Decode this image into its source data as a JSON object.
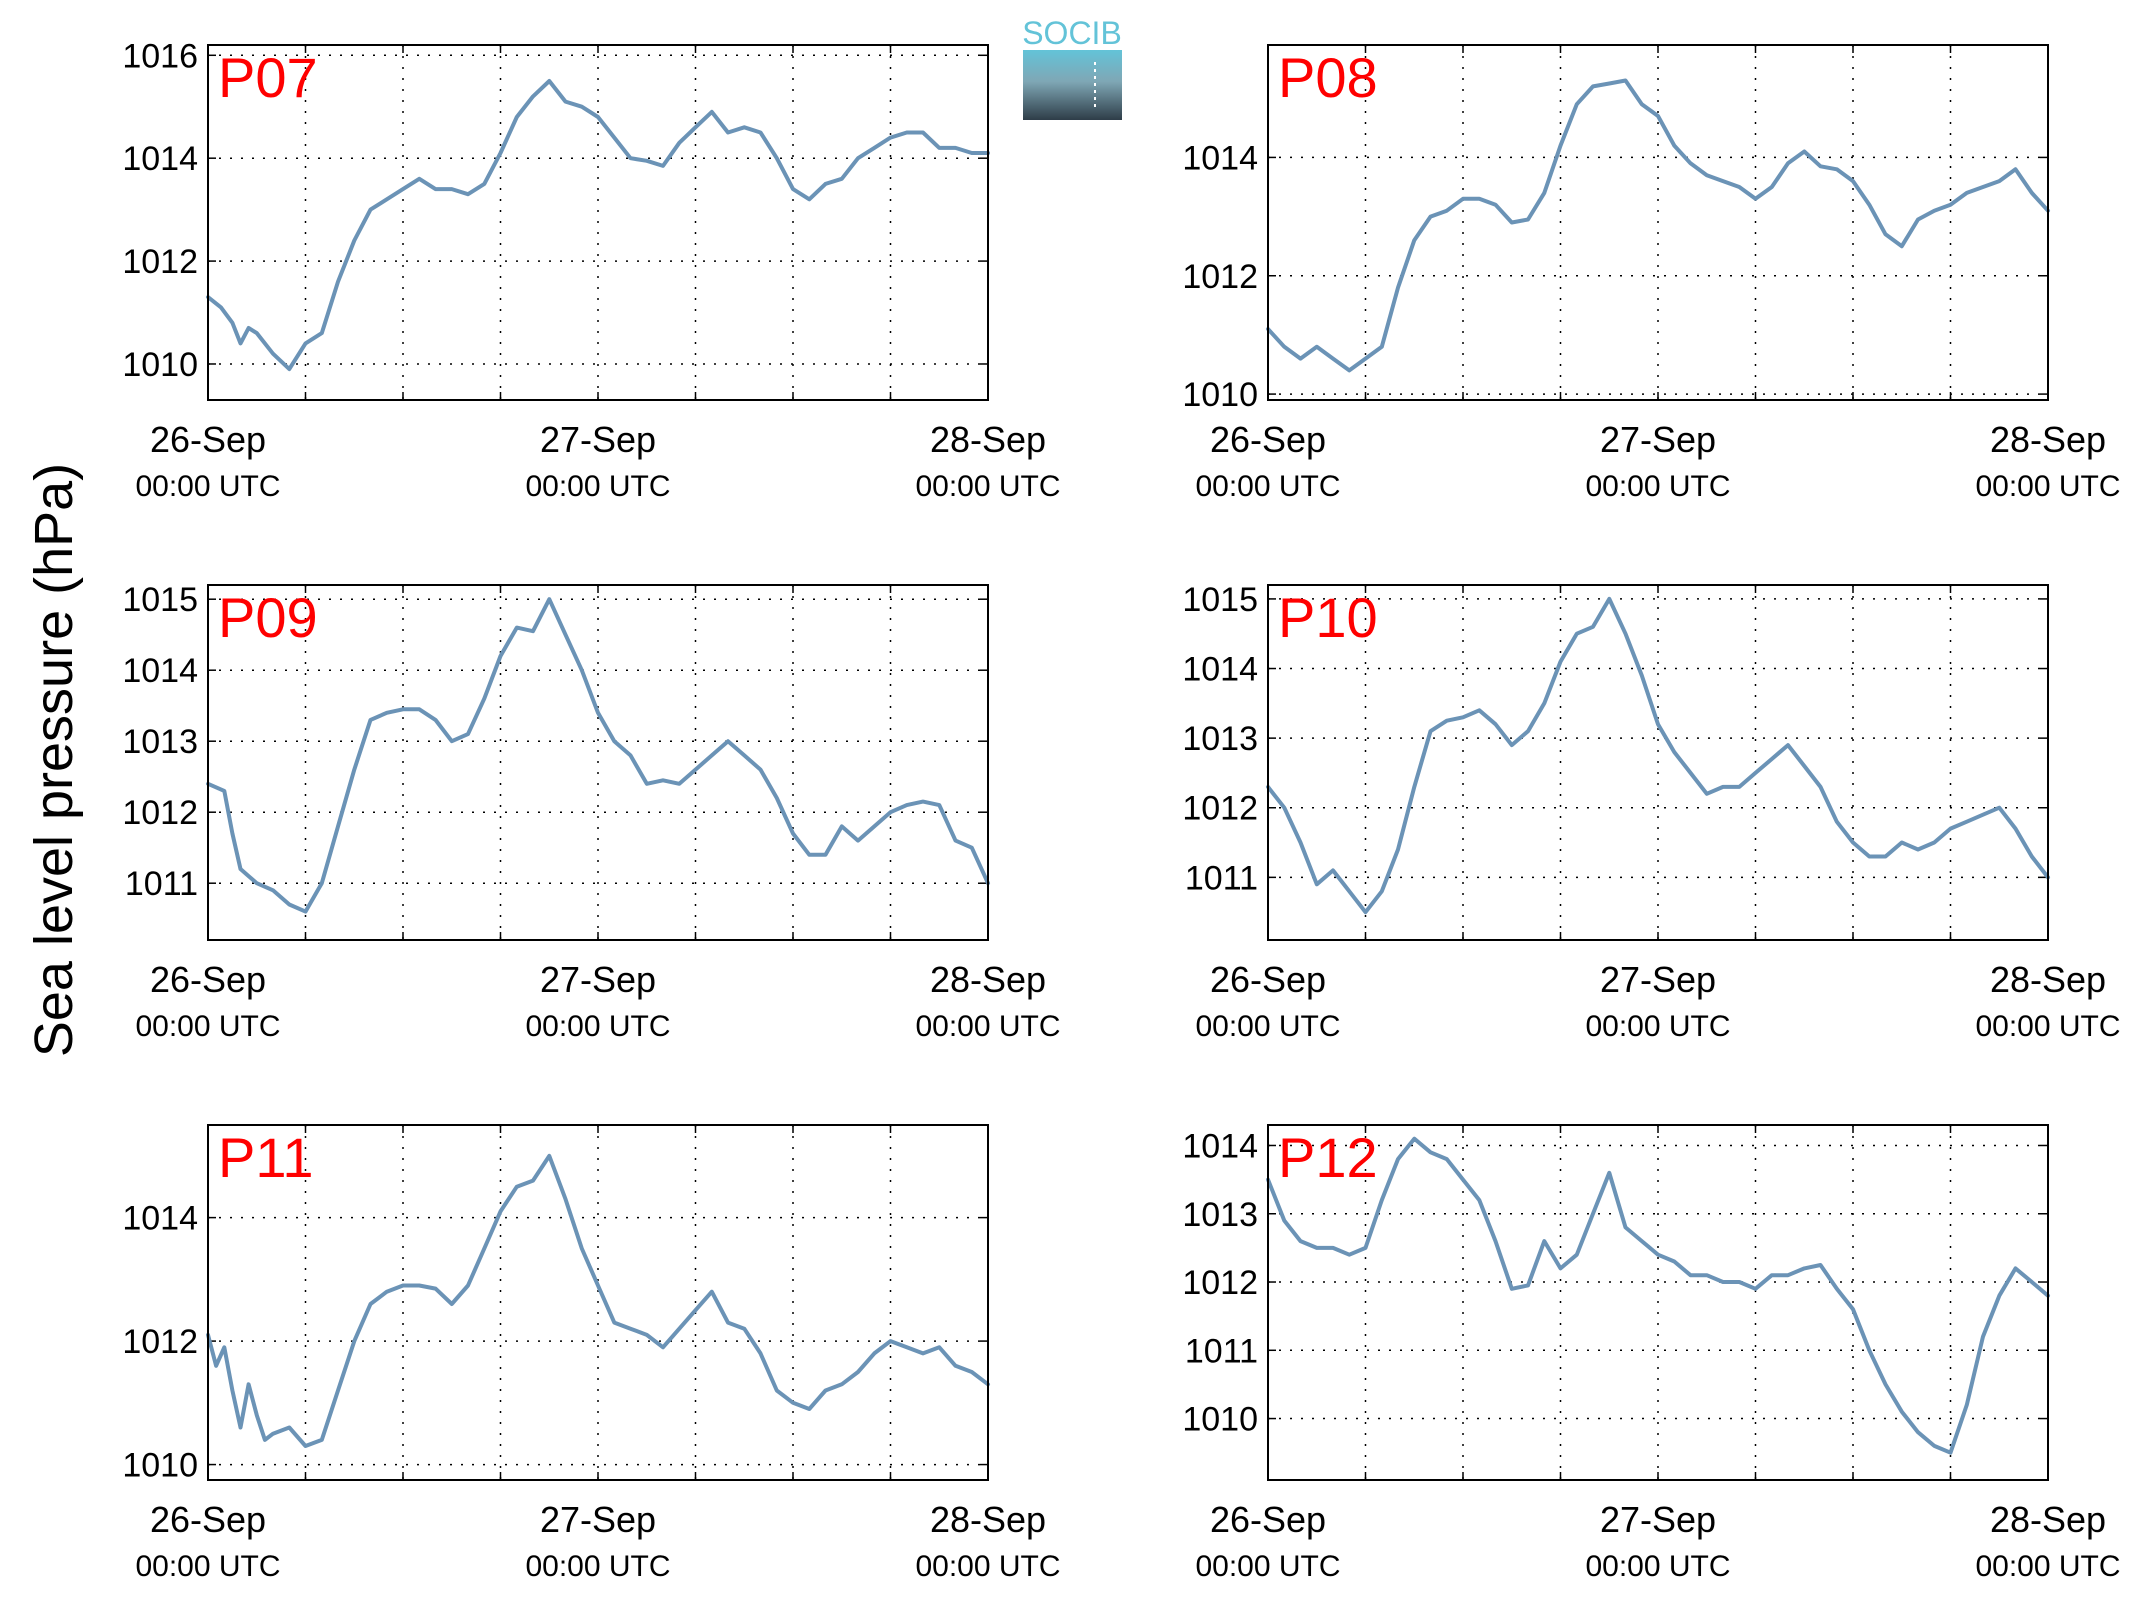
{
  "figure": {
    "ylabel": "Sea level pressure (hPa)",
    "logo_text": "SOCIB"
  },
  "colors": {
    "series": "#6b93b6",
    "station_label": "#ff0000",
    "logo_top": "#63c3d8",
    "logo_bottom": "#2e3d48"
  },
  "chart_data": [
    {
      "type": "line",
      "station": "P07",
      "x_ticks": [
        {
          "date": "26-Sep",
          "time": "00:00 UTC"
        },
        {
          "date": "27-Sep",
          "time": "00:00 UTC"
        },
        {
          "date": "28-Sep",
          "time": "00:00 UTC"
        }
      ],
      "x_range_hours": [
        0,
        48
      ],
      "ylim": [
        1009.3,
        1016.2
      ],
      "y_ticks": [
        1010,
        1012,
        1014,
        1016
      ],
      "grid": true,
      "series": [
        {
          "x_hours": [
            0,
            0.8,
            1.5,
            2,
            2.5,
            3,
            4,
            5,
            6,
            7,
            8,
            9,
            10,
            11,
            12,
            13,
            14,
            15,
            16,
            17,
            18,
            19,
            20,
            21,
            22,
            23,
            24,
            25,
            26,
            27,
            28,
            29,
            30,
            31,
            32,
            33,
            34,
            35,
            36,
            37,
            38,
            39,
            40,
            41,
            42,
            43,
            44,
            45,
            46,
            47,
            48
          ],
          "values": [
            1011.3,
            1011.1,
            1010.8,
            1010.4,
            1010.7,
            1010.6,
            1010.2,
            1009.9,
            1010.4,
            1010.6,
            1011.6,
            1012.4,
            1013.0,
            1013.2,
            1013.4,
            1013.6,
            1013.4,
            1013.4,
            1013.3,
            1013.5,
            1014.1,
            1014.8,
            1015.2,
            1015.5,
            1015.1,
            1015.0,
            1014.8,
            1014.4,
            1014.0,
            1013.95,
            1013.85,
            1014.3,
            1014.6,
            1014.9,
            1014.5,
            1014.6,
            1014.5,
            1014.0,
            1013.4,
            1013.2,
            1013.5,
            1013.6,
            1014.0,
            1014.2,
            1014.4,
            1014.5,
            1014.5,
            1014.2,
            1014.2,
            1014.1,
            1014.1
          ]
        }
      ]
    },
    {
      "type": "line",
      "station": "P08",
      "x_ticks": [
        {
          "date": "26-Sep",
          "time": "00:00 UTC"
        },
        {
          "date": "27-Sep",
          "time": "00:00 UTC"
        },
        {
          "date": "28-Sep",
          "time": "00:00 UTC"
        }
      ],
      "x_range_hours": [
        0,
        48
      ],
      "ylim": [
        1009.9,
        1015.9
      ],
      "y_ticks": [
        1010,
        1012,
        1014
      ],
      "grid": true,
      "series": [
        {
          "x_hours": [
            0,
            1,
            2,
            3,
            4,
            5,
            6,
            7,
            8,
            9,
            10,
            11,
            12,
            13,
            14,
            15,
            16,
            17,
            18,
            19,
            20,
            21,
            22,
            23,
            24,
            25,
            26,
            27,
            28,
            29,
            30,
            31,
            32,
            33,
            34,
            35,
            36,
            37,
            38,
            39,
            40,
            41,
            42,
            43,
            44,
            45,
            46,
            47,
            48
          ],
          "values": [
            1011.1,
            1010.8,
            1010.6,
            1010.8,
            1010.6,
            1010.4,
            1010.6,
            1010.8,
            1011.8,
            1012.6,
            1013.0,
            1013.1,
            1013.3,
            1013.3,
            1013.2,
            1012.9,
            1012.95,
            1013.4,
            1014.2,
            1014.9,
            1015.2,
            1015.25,
            1015.3,
            1014.9,
            1014.7,
            1014.2,
            1013.9,
            1013.7,
            1013.6,
            1013.5,
            1013.3,
            1013.5,
            1013.9,
            1014.1,
            1013.85,
            1013.8,
            1013.6,
            1013.2,
            1012.7,
            1012.5,
            1012.95,
            1013.1,
            1013.2,
            1013.4,
            1013.5,
            1013.6,
            1013.8,
            1013.4,
            1013.1
          ]
        }
      ]
    },
    {
      "type": "line",
      "station": "P09",
      "x_ticks": [
        {
          "date": "26-Sep",
          "time": "00:00 UTC"
        },
        {
          "date": "27-Sep",
          "time": "00:00 UTC"
        },
        {
          "date": "28-Sep",
          "time": "00:00 UTC"
        }
      ],
      "x_range_hours": [
        0,
        48
      ],
      "ylim": [
        1010.2,
        1015.2
      ],
      "y_ticks": [
        1011,
        1012,
        1013,
        1014,
        1015
      ],
      "grid": true,
      "series": [
        {
          "x_hours": [
            0,
            1,
            1.5,
            2,
            2.5,
            3,
            4,
            5,
            6,
            7,
            8,
            9,
            10,
            11,
            12,
            13,
            14,
            15,
            16,
            17,
            18,
            19,
            20,
            21,
            22,
            23,
            24,
            25,
            26,
            27,
            28,
            29,
            30,
            31,
            32,
            33,
            34,
            35,
            36,
            37,
            38,
            39,
            40,
            41,
            42,
            43,
            44,
            45,
            46,
            47,
            48
          ],
          "values": [
            1012.4,
            1012.3,
            1011.7,
            1011.2,
            1011.1,
            1011.0,
            1010.9,
            1010.7,
            1010.6,
            1011.0,
            1011.8,
            1012.6,
            1013.3,
            1013.4,
            1013.45,
            1013.45,
            1013.3,
            1013.0,
            1013.1,
            1013.6,
            1014.2,
            1014.6,
            1014.55,
            1015.0,
            1014.5,
            1014.0,
            1013.4,
            1013.0,
            1012.8,
            1012.4,
            1012.45,
            1012.4,
            1012.6,
            1012.8,
            1013.0,
            1012.8,
            1012.6,
            1012.2,
            1011.7,
            1011.4,
            1011.4,
            1011.8,
            1011.6,
            1011.8,
            1012.0,
            1012.1,
            1012.15,
            1012.1,
            1011.6,
            1011.5,
            1011.0
          ]
        }
      ]
    },
    {
      "type": "line",
      "station": "P10",
      "x_ticks": [
        {
          "date": "26-Sep",
          "time": "00:00 UTC"
        },
        {
          "date": "27-Sep",
          "time": "00:00 UTC"
        },
        {
          "date": "28-Sep",
          "time": "00:00 UTC"
        }
      ],
      "x_range_hours": [
        0,
        48
      ],
      "ylim": [
        1010.1,
        1015.2
      ],
      "y_ticks": [
        1011,
        1012,
        1013,
        1014,
        1015
      ],
      "grid": true,
      "series": [
        {
          "x_hours": [
            0,
            1,
            2,
            3,
            4,
            5,
            6,
            7,
            8,
            9,
            10,
            11,
            12,
            13,
            14,
            15,
            16,
            17,
            18,
            19,
            20,
            21,
            22,
            23,
            24,
            25,
            26,
            27,
            28,
            29,
            30,
            31,
            32,
            33,
            34,
            35,
            36,
            37,
            38,
            39,
            40,
            41,
            42,
            43,
            44,
            45,
            46,
            47,
            48
          ],
          "values": [
            1012.3,
            1012.0,
            1011.5,
            1010.9,
            1011.1,
            1010.8,
            1010.5,
            1010.8,
            1011.4,
            1012.3,
            1013.1,
            1013.25,
            1013.3,
            1013.4,
            1013.2,
            1012.9,
            1013.1,
            1013.5,
            1014.1,
            1014.5,
            1014.6,
            1015.0,
            1014.5,
            1013.9,
            1013.2,
            1012.8,
            1012.5,
            1012.2,
            1012.3,
            1012.3,
            1012.5,
            1012.7,
            1012.9,
            1012.6,
            1012.3,
            1011.8,
            1011.5,
            1011.3,
            1011.3,
            1011.5,
            1011.4,
            1011.5,
            1011.7,
            1011.8,
            1011.9,
            1012.0,
            1011.7,
            1011.3,
            1011.0
          ]
        }
      ]
    },
    {
      "type": "line",
      "station": "P11",
      "x_ticks": [
        {
          "date": "26-Sep",
          "time": "00:00 UTC"
        },
        {
          "date": "27-Sep",
          "time": "00:00 UTC"
        },
        {
          "date": "28-Sep",
          "time": "00:00 UTC"
        }
      ],
      "x_range_hours": [
        0,
        48
      ],
      "ylim": [
        1009.75,
        1015.5
      ],
      "y_ticks": [
        1010,
        1012,
        1014
      ],
      "grid": true,
      "series": [
        {
          "x_hours": [
            0,
            0.5,
            1,
            1.5,
            2,
            2.5,
            3,
            3.5,
            4,
            5,
            6,
            7,
            8,
            9,
            10,
            11,
            12,
            13,
            14,
            15,
            16,
            17,
            18,
            19,
            20,
            21,
            22,
            23,
            24,
            25,
            26,
            27,
            28,
            29,
            30,
            31,
            32,
            33,
            34,
            35,
            36,
            37,
            38,
            39,
            40,
            41,
            42,
            43,
            44,
            45,
            46,
            47,
            48
          ],
          "values": [
            1012.1,
            1011.6,
            1011.9,
            1011.2,
            1010.6,
            1011.3,
            1010.8,
            1010.4,
            1010.5,
            1010.6,
            1010.3,
            1010.4,
            1011.2,
            1012.0,
            1012.6,
            1012.8,
            1012.9,
            1012.9,
            1012.85,
            1012.6,
            1012.9,
            1013.5,
            1014.1,
            1014.5,
            1014.6,
            1015.0,
            1014.3,
            1013.5,
            1012.9,
            1012.3,
            1012.2,
            1012.1,
            1011.9,
            1012.2,
            1012.5,
            1012.8,
            1012.3,
            1012.2,
            1011.8,
            1011.2,
            1011.0,
            1010.9,
            1011.2,
            1011.3,
            1011.5,
            1011.8,
            1012.0,
            1011.9,
            1011.8,
            1011.9,
            1011.6,
            1011.5,
            1011.3
          ]
        }
      ]
    },
    {
      "type": "line",
      "station": "P12",
      "x_ticks": [
        {
          "date": "26-Sep",
          "time": "00:00 UTC"
        },
        {
          "date": "27-Sep",
          "time": "00:00 UTC"
        },
        {
          "date": "28-Sep",
          "time": "00:00 UTC"
        }
      ],
      "x_range_hours": [
        0,
        48
      ],
      "ylim": [
        1009.1,
        1014.3
      ],
      "y_ticks": [
        1010,
        1011,
        1012,
        1013,
        1014
      ],
      "grid": true,
      "series": [
        {
          "x_hours": [
            0,
            1,
            2,
            3,
            4,
            5,
            6,
            7,
            8,
            9,
            10,
            11,
            12,
            13,
            14,
            15,
            16,
            17,
            18,
            19,
            20,
            21,
            22,
            23,
            24,
            25,
            26,
            27,
            28,
            29,
            30,
            31,
            32,
            33,
            34,
            35,
            36,
            37,
            38,
            39,
            40,
            41,
            42,
            43,
            44,
            45,
            46,
            47,
            48
          ],
          "values": [
            1013.5,
            1012.9,
            1012.6,
            1012.5,
            1012.5,
            1012.4,
            1012.5,
            1013.2,
            1013.8,
            1014.1,
            1013.9,
            1013.8,
            1013.5,
            1013.2,
            1012.6,
            1011.9,
            1011.95,
            1012.6,
            1012.2,
            1012.4,
            1013.0,
            1013.6,
            1012.8,
            1012.6,
            1012.4,
            1012.3,
            1012.1,
            1012.1,
            1012.0,
            1012.0,
            1011.9,
            1012.1,
            1012.1,
            1012.2,
            1012.25,
            1011.9,
            1011.6,
            1011.0,
            1010.5,
            1010.1,
            1009.8,
            1009.6,
            1009.5,
            1010.2,
            1011.2,
            1011.8,
            1012.2,
            1012.0,
            1011.8
          ]
        }
      ]
    }
  ]
}
